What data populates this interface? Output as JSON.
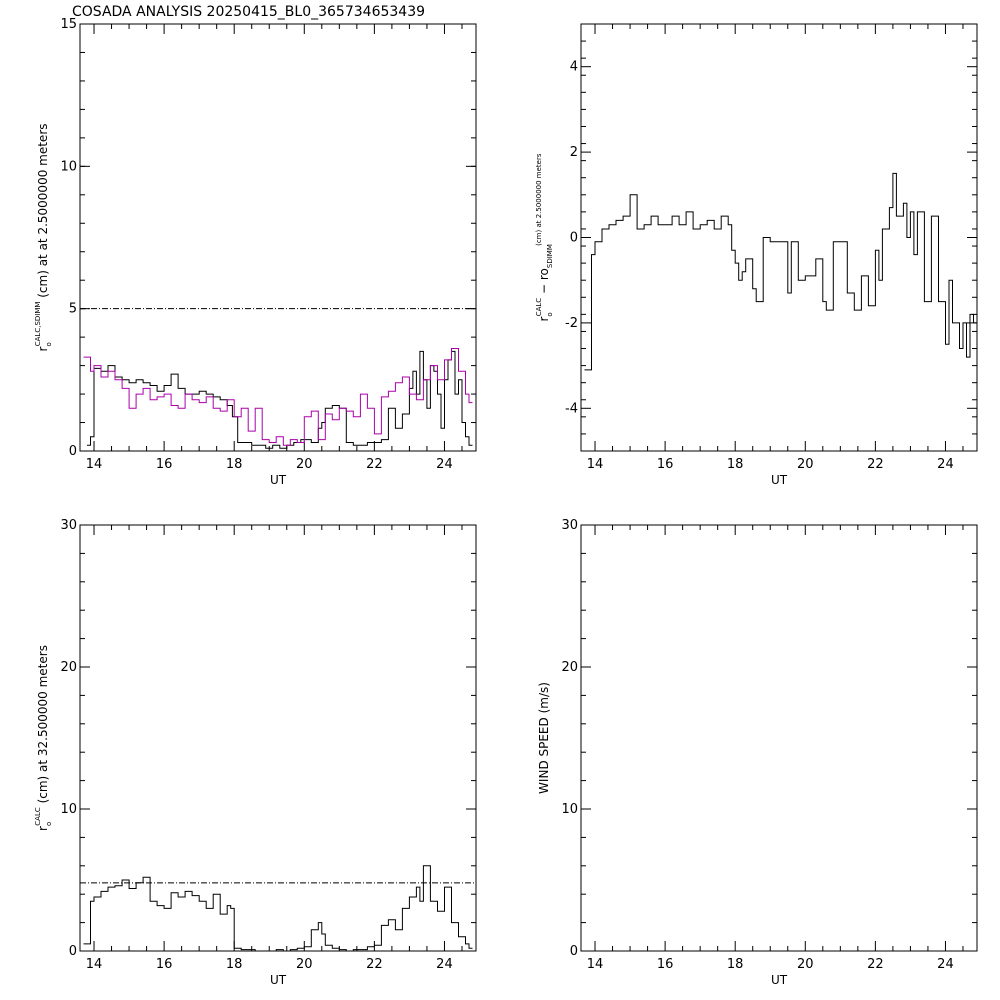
{
  "figure": {
    "title": "COSADA ANALYSIS 20250415_BL0_365734653439"
  },
  "chart_data": [
    {
      "id": "panel1",
      "type": "line",
      "xlabel": "UT",
      "ylabel_parts": [
        "r",
        "o",
        "CALC,SDIMM",
        " (cm) at  at 2.5000000 meters"
      ],
      "xlim": [
        13.6,
        24.9
      ],
      "ylim": [
        0,
        15
      ],
      "xticks": [
        14,
        16,
        18,
        20,
        22,
        24
      ],
      "yticks": [
        0,
        5,
        10,
        15
      ],
      "grid": false,
      "reference_line": {
        "y": 5,
        "style": "dash-dot"
      },
      "series": [
        {
          "color": "#000000",
          "x": [
            13.8,
            13.9,
            14.0,
            14.2,
            14.4,
            14.6,
            14.8,
            15.0,
            15.2,
            15.4,
            15.6,
            15.8,
            16.0,
            16.2,
            16.4,
            16.6,
            16.8,
            17.0,
            17.2,
            17.4,
            17.6,
            17.8,
            17.95,
            18.1,
            18.3,
            18.5,
            18.7,
            18.9,
            19.1,
            19.3,
            19.5,
            19.7,
            19.9,
            20.0,
            20.2,
            20.4,
            20.5,
            20.6,
            20.8,
            21.0,
            21.2,
            21.4,
            21.6,
            21.8,
            22.0,
            22.2,
            22.4,
            22.6,
            22.8,
            23.0,
            23.1,
            23.2,
            23.3,
            23.4,
            23.5,
            23.6,
            23.7,
            23.8,
            23.9,
            24.0,
            24.1,
            24.2,
            24.3,
            24.4,
            24.5,
            24.6,
            24.7
          ],
          "y": [
            0.2,
            0.5,
            2.9,
            2.8,
            3.0,
            2.6,
            2.5,
            2.4,
            2.5,
            2.4,
            2.3,
            2.1,
            2.3,
            2.7,
            2.2,
            2.0,
            2.0,
            2.1,
            2.0,
            1.9,
            1.8,
            1.6,
            1.2,
            0.3,
            0.3,
            0.2,
            0.2,
            0.1,
            0.2,
            0.1,
            0.2,
            0.3,
            0.4,
            0.4,
            0.3,
            0.8,
            1.0,
            1.5,
            1.6,
            1.5,
            0.3,
            0.2,
            0.2,
            0.3,
            0.3,
            0.4,
            1.5,
            0.8,
            1.3,
            2.2,
            2.8,
            2.0,
            3.5,
            2.5,
            1.5,
            3.0,
            2.8,
            2.0,
            0.8,
            2.5,
            3.2,
            3.5,
            2.0,
            2.5,
            1.0,
            0.5,
            0.2
          ]
        },
        {
          "color": "#aa00aa",
          "x": [
            13.7,
            13.9,
            14.0,
            14.2,
            14.4,
            14.6,
            14.8,
            15.0,
            15.2,
            15.4,
            15.6,
            15.8,
            16.0,
            16.2,
            16.4,
            16.6,
            16.8,
            17.0,
            17.2,
            17.4,
            17.6,
            17.8,
            18.0,
            18.2,
            18.4,
            18.6,
            18.8,
            19.0,
            19.2,
            19.4,
            19.6,
            19.8,
            20.0,
            20.2,
            20.4,
            20.6,
            20.8,
            21.0,
            21.2,
            21.4,
            21.6,
            21.8,
            22.0,
            22.2,
            22.4,
            22.6,
            22.8,
            23.0,
            23.2,
            23.4,
            23.6,
            23.8,
            24.0,
            24.2,
            24.4,
            24.6,
            24.7
          ],
          "y": [
            3.3,
            2.8,
            3.0,
            2.6,
            2.8,
            2.5,
            2.2,
            1.5,
            2.0,
            2.2,
            1.8,
            1.9,
            2.0,
            1.6,
            1.5,
            2.0,
            1.8,
            1.7,
            1.9,
            1.5,
            1.4,
            1.8,
            1.2,
            1.5,
            0.7,
            1.5,
            0.4,
            0.3,
            0.5,
            0.2,
            0.4,
            0.3,
            1.2,
            1.4,
            0.4,
            1.3,
            1.1,
            1.5,
            1.4,
            1.2,
            2.0,
            1.5,
            0.6,
            1.9,
            2.1,
            2.4,
            2.6,
            2.0,
            1.8,
            2.5,
            3.0,
            2.5,
            3.2,
            3.6,
            2.8,
            2.0,
            1.7
          ]
        }
      ]
    },
    {
      "id": "panel2",
      "type": "line",
      "xlabel": "UT",
      "ylabel_parts": [
        "r",
        "o",
        "CALC",
        " − r",
        "o",
        "SDIMM",
        " (cm) at 2.5000000 meters"
      ],
      "xlim": [
        13.6,
        24.9
      ],
      "ylim": [
        -5,
        5
      ],
      "xticks": [
        14,
        16,
        18,
        20,
        22,
        24
      ],
      "yticks": [
        -4,
        -2,
        0,
        2,
        4
      ],
      "grid": false,
      "series": [
        {
          "color": "#000000",
          "x": [
            13.7,
            13.9,
            14.0,
            14.2,
            14.4,
            14.6,
            14.8,
            15.0,
            15.2,
            15.4,
            15.6,
            15.8,
            16.0,
            16.2,
            16.4,
            16.6,
            16.8,
            17.0,
            17.2,
            17.4,
            17.6,
            17.8,
            17.9,
            18.0,
            18.1,
            18.2,
            18.3,
            18.5,
            18.6,
            18.8,
            19.0,
            19.2,
            19.4,
            19.5,
            19.6,
            19.8,
            20.0,
            20.1,
            20.3,
            20.5,
            20.6,
            20.8,
            21.0,
            21.2,
            21.4,
            21.6,
            21.8,
            22.0,
            22.1,
            22.2,
            22.4,
            22.5,
            22.6,
            22.8,
            22.9,
            23.0,
            23.1,
            23.2,
            23.4,
            23.6,
            23.8,
            24.0,
            24.1,
            24.2,
            24.4,
            24.5,
            24.6,
            24.7,
            24.8
          ],
          "y": [
            -3.1,
            -0.4,
            -0.1,
            0.2,
            0.3,
            0.4,
            0.5,
            1.0,
            0.2,
            0.3,
            0.5,
            0.3,
            0.3,
            0.5,
            0.3,
            0.6,
            0.2,
            0.3,
            0.4,
            0.2,
            0.5,
            0.3,
            -0.3,
            -0.6,
            -1.0,
            -0.8,
            -0.5,
            -1.2,
            -1.5,
            0.0,
            -0.1,
            -0.1,
            -0.1,
            -1.3,
            -0.1,
            -1.0,
            -0.9,
            -0.9,
            -0.5,
            -1.5,
            -1.7,
            -0.1,
            -0.1,
            -1.3,
            -1.7,
            -0.9,
            -1.6,
            -0.3,
            -1.0,
            0.2,
            0.7,
            1.5,
            0.5,
            0.8,
            0.0,
            0.6,
            -0.4,
            0.6,
            -1.5,
            0.5,
            -1.5,
            -2.5,
            -1.0,
            -2.0,
            -2.6,
            -2.0,
            -2.8,
            -1.8,
            -2.0
          ]
        }
      ]
    },
    {
      "id": "panel3",
      "type": "line",
      "xlabel": "UT",
      "ylabel_parts": [
        "r",
        "o",
        "CALC",
        " (cm) at 32.500000 meters"
      ],
      "xlim": [
        13.6,
        24.9
      ],
      "ylim": [
        0,
        30
      ],
      "xticks": [
        14,
        16,
        18,
        20,
        22,
        24
      ],
      "yticks": [
        0,
        10,
        20,
        30
      ],
      "grid": false,
      "reference_line": {
        "y": 4.8,
        "style": "dash-dot"
      },
      "series": [
        {
          "color": "#000000",
          "x": [
            13.7,
            13.9,
            14.0,
            14.2,
            14.4,
            14.6,
            14.8,
            15.0,
            15.2,
            15.4,
            15.6,
            15.8,
            16.0,
            16.2,
            16.4,
            16.6,
            16.8,
            17.0,
            17.2,
            17.4,
            17.6,
            17.8,
            17.9,
            18.0,
            18.2,
            18.4,
            18.6,
            18.8,
            19.0,
            19.2,
            19.4,
            19.6,
            19.8,
            20.0,
            20.2,
            20.4,
            20.5,
            20.6,
            20.8,
            21.0,
            21.2,
            21.4,
            21.6,
            21.8,
            22.0,
            22.2,
            22.4,
            22.6,
            22.8,
            23.0,
            23.2,
            23.3,
            23.4,
            23.6,
            23.8,
            24.0,
            24.2,
            24.4,
            24.6,
            24.7
          ],
          "y": [
            0.5,
            3.5,
            3.8,
            4.2,
            4.5,
            4.6,
            5.0,
            4.4,
            4.8,
            5.2,
            3.5,
            3.2,
            3.0,
            4.1,
            3.8,
            4.2,
            3.9,
            3.5,
            3.0,
            4.0,
            2.6,
            3.2,
            3.0,
            0.2,
            0.1,
            0.1,
            0.0,
            0.0,
            0.0,
            0.1,
            0.0,
            0.1,
            0.2,
            0.3,
            1.5,
            2.0,
            1.2,
            0.4,
            0.2,
            0.1,
            0.0,
            0.1,
            0.1,
            0.3,
            0.4,
            1.8,
            2.2,
            1.5,
            3.0,
            3.8,
            4.5,
            3.5,
            6.0,
            3.5,
            2.8,
            4.5,
            2.0,
            1.0,
            0.5,
            0.2
          ]
        }
      ]
    },
    {
      "id": "panel4",
      "type": "line",
      "xlabel": "UT",
      "ylabel_parts": [
        "WIND SPEED (m/s)"
      ],
      "xlim": [
        13.6,
        24.9
      ],
      "ylim": [
        0,
        30
      ],
      "xticks": [
        14,
        16,
        18,
        20,
        22,
        24
      ],
      "yticks": [
        0,
        10,
        20,
        30
      ],
      "grid": false,
      "series": []
    }
  ]
}
